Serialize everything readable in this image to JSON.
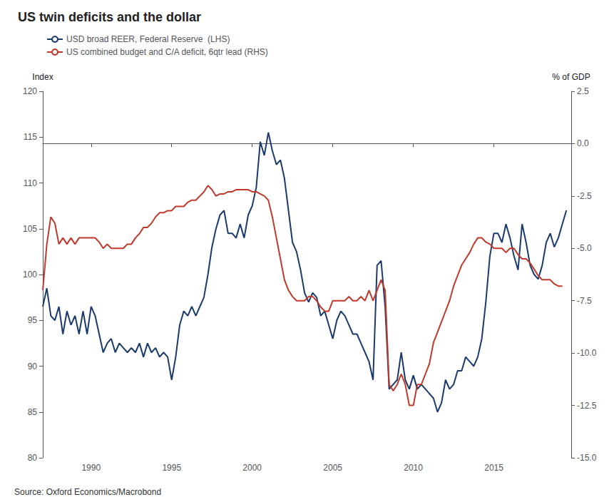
{
  "chart_data": {
    "type": "line",
    "title": "US twin deficits and the dollar",
    "ylabel": "Index",
    "y2label": "% of GDP",
    "annotations": [
      "Source: Oxford Economics/Macrobond"
    ],
    "legend": "upper left",
    "grid": false,
    "xlim": [
      1987.0,
      2019.8
    ],
    "xticks": [
      1990,
      1995,
      2000,
      2005,
      2010,
      2015
    ],
    "ylim": [
      80,
      120
    ],
    "yticks": [
      80,
      85,
      90,
      95,
      100,
      105,
      110,
      115,
      120
    ],
    "y2lim": [
      -15.0,
      2.5
    ],
    "y2ticks": [
      {
        "value": -15.0,
        "label": "-15.0"
      },
      -12.5,
      {
        "value": -10.0,
        "label": "-10.0"
      },
      -7.5,
      {
        "value": -5.0,
        "label": "-5.0"
      },
      -2.5,
      {
        "value": 0.0,
        "label": "0.0"
      },
      2.5
    ],
    "x": [
      1987.0,
      1987.25,
      1987.5,
      1987.75,
      1988.0,
      1988.25,
      1988.5,
      1988.75,
      1989.0,
      1989.25,
      1989.5,
      1989.75,
      1990.0,
      1990.25,
      1990.5,
      1990.75,
      1991.0,
      1991.25,
      1991.5,
      1991.75,
      1992.0,
      1992.25,
      1992.5,
      1992.75,
      1993.0,
      1993.25,
      1993.5,
      1993.75,
      1994.0,
      1994.25,
      1994.5,
      1994.75,
      1995.0,
      1995.25,
      1995.5,
      1995.75,
      1996.0,
      1996.25,
      1996.5,
      1996.75,
      1997.0,
      1997.25,
      1997.5,
      1997.75,
      1998.0,
      1998.25,
      1998.5,
      1998.75,
      1999.0,
      1999.25,
      1999.5,
      1999.75,
      2000.0,
      2000.25,
      2000.5,
      2000.75,
      2001.0,
      2001.25,
      2001.5,
      2001.75,
      2002.0,
      2002.25,
      2002.5,
      2002.75,
      2003.0,
      2003.25,
      2003.5,
      2003.75,
      2004.0,
      2004.25,
      2004.5,
      2004.75,
      2005.0,
      2005.25,
      2005.5,
      2005.75,
      2006.0,
      2006.25,
      2006.5,
      2006.75,
      2007.0,
      2007.25,
      2007.5,
      2007.75,
      2008.0,
      2008.25,
      2008.5,
      2008.75,
      2009.0,
      2009.25,
      2009.5,
      2009.75,
      2010.0,
      2010.25,
      2010.5,
      2010.75,
      2011.0,
      2011.25,
      2011.5,
      2011.75,
      2012.0,
      2012.25,
      2012.5,
      2012.75,
      2013.0,
      2013.25,
      2013.5,
      2013.75,
      2014.0,
      2014.25,
      2014.5,
      2014.75,
      2015.0,
      2015.25,
      2015.5,
      2015.75,
      2016.0,
      2016.25,
      2016.5,
      2016.75,
      2017.0,
      2017.25,
      2017.5,
      2017.75,
      2018.0,
      2018.25,
      2018.5,
      2018.75,
      2019.0,
      2019.25,
      2019.5
    ],
    "series": [
      {
        "name": "USD broad REER, Federal Reserve  (LHS)",
        "color": "#1a3a6e",
        "values": [
          96.5,
          98.5,
          95.5,
          95.0,
          96.5,
          93.5,
          96.0,
          94.5,
          95.5,
          93.5,
          96.0,
          93.5,
          96.5,
          95.5,
          93.5,
          91.5,
          92.5,
          93.0,
          91.5,
          92.5,
          92.0,
          91.5,
          92.0,
          91.5,
          92.5,
          91.0,
          92.5,
          91.5,
          92.0,
          91.0,
          91.5,
          91.0,
          88.5,
          91.0,
          94.5,
          96.0,
          95.5,
          96.5,
          95.5,
          96.5,
          97.5,
          100.0,
          103.0,
          105.0,
          106.5,
          107.0,
          104.5,
          104.5,
          104.0,
          105.5,
          104.0,
          106.5,
          107.5,
          109.5,
          114.5,
          113.0,
          115.5,
          113.5,
          112.0,
          112.5,
          110.5,
          107.0,
          103.5,
          102.5,
          100.5,
          98.0,
          97.0,
          98.0,
          97.5,
          95.5,
          96.0,
          94.5,
          93.0,
          95.0,
          96.0,
          95.5,
          94.5,
          93.5,
          93.5,
          92.5,
          91.5,
          90.5,
          88.5,
          101.0,
          101.5,
          96.5,
          87.5,
          88.0,
          88.5,
          91.5,
          88.5,
          87.5,
          89.0,
          87.5,
          88.0,
          87.5,
          87.0,
          86.5,
          85.0,
          86.0,
          88.5,
          87.5,
          88.0,
          89.5,
          89.5,
          91.0,
          90.5,
          90.0,
          91.0,
          93.0,
          97.0,
          102.0,
          104.5,
          104.5,
          103.5,
          105.5,
          104.0,
          102.0,
          100.5,
          105.5,
          103.5,
          101.0,
          100.0,
          99.5,
          101.0,
          103.5,
          104.5,
          103.0,
          104.0,
          105.5,
          107.0
        ]
      },
      {
        "name": "US combined budget and C/A deficit, 6qtr lead (RHS)",
        "color": "#c0392b",
        "axis": "y2",
        "values": [
          -7.0,
          -4.8,
          -3.5,
          -3.8,
          -4.8,
          -4.5,
          -4.8,
          -4.5,
          -4.8,
          -4.5,
          -4.5,
          -4.5,
          -4.5,
          -4.5,
          -4.7,
          -5.0,
          -4.8,
          -5.0,
          -5.0,
          -5.0,
          -5.0,
          -4.8,
          -4.8,
          -4.5,
          -4.3,
          -4.0,
          -4.0,
          -3.8,
          -3.5,
          -3.3,
          -3.3,
          -3.2,
          -3.2,
          -3.0,
          -3.0,
          -3.0,
          -2.8,
          -2.7,
          -2.7,
          -2.5,
          -2.3,
          -2.0,
          -2.2,
          -2.5,
          -2.4,
          -2.4,
          -2.3,
          -2.3,
          -2.2,
          -2.2,
          -2.2,
          -2.2,
          -2.3,
          -2.3,
          -2.4,
          -2.5,
          -2.7,
          -3.5,
          -4.5,
          -5.5,
          -6.5,
          -7.0,
          -7.3,
          -7.5,
          -7.5,
          -7.5,
          -7.3,
          -7.3,
          -7.5,
          -7.8,
          -8.0,
          -8.0,
          -7.5,
          -7.5,
          -7.5,
          -7.5,
          -7.3,
          -7.5,
          -7.5,
          -7.3,
          -7.5,
          -7.0,
          -7.5,
          -7.0,
          -6.5,
          -7.0,
          -11.5,
          -11.8,
          -11.5,
          -11.0,
          -11.5,
          -12.5,
          -12.5,
          -11.5,
          -11.5,
          -11.0,
          -10.5,
          -9.5,
          -9.0,
          -8.5,
          -8.0,
          -7.5,
          -6.8,
          -6.3,
          -5.8,
          -5.5,
          -5.2,
          -4.8,
          -4.5,
          -4.5,
          -4.7,
          -4.8,
          -5.0,
          -5.0,
          -5.0,
          -5.2,
          -5.0,
          -5.0,
          -5.3,
          -5.5,
          -5.5,
          -5.7,
          -6.0,
          -6.3,
          -6.5,
          -6.5,
          -6.5,
          -6.7,
          -6.8,
          -6.8,
          null
        ]
      }
    ]
  }
}
